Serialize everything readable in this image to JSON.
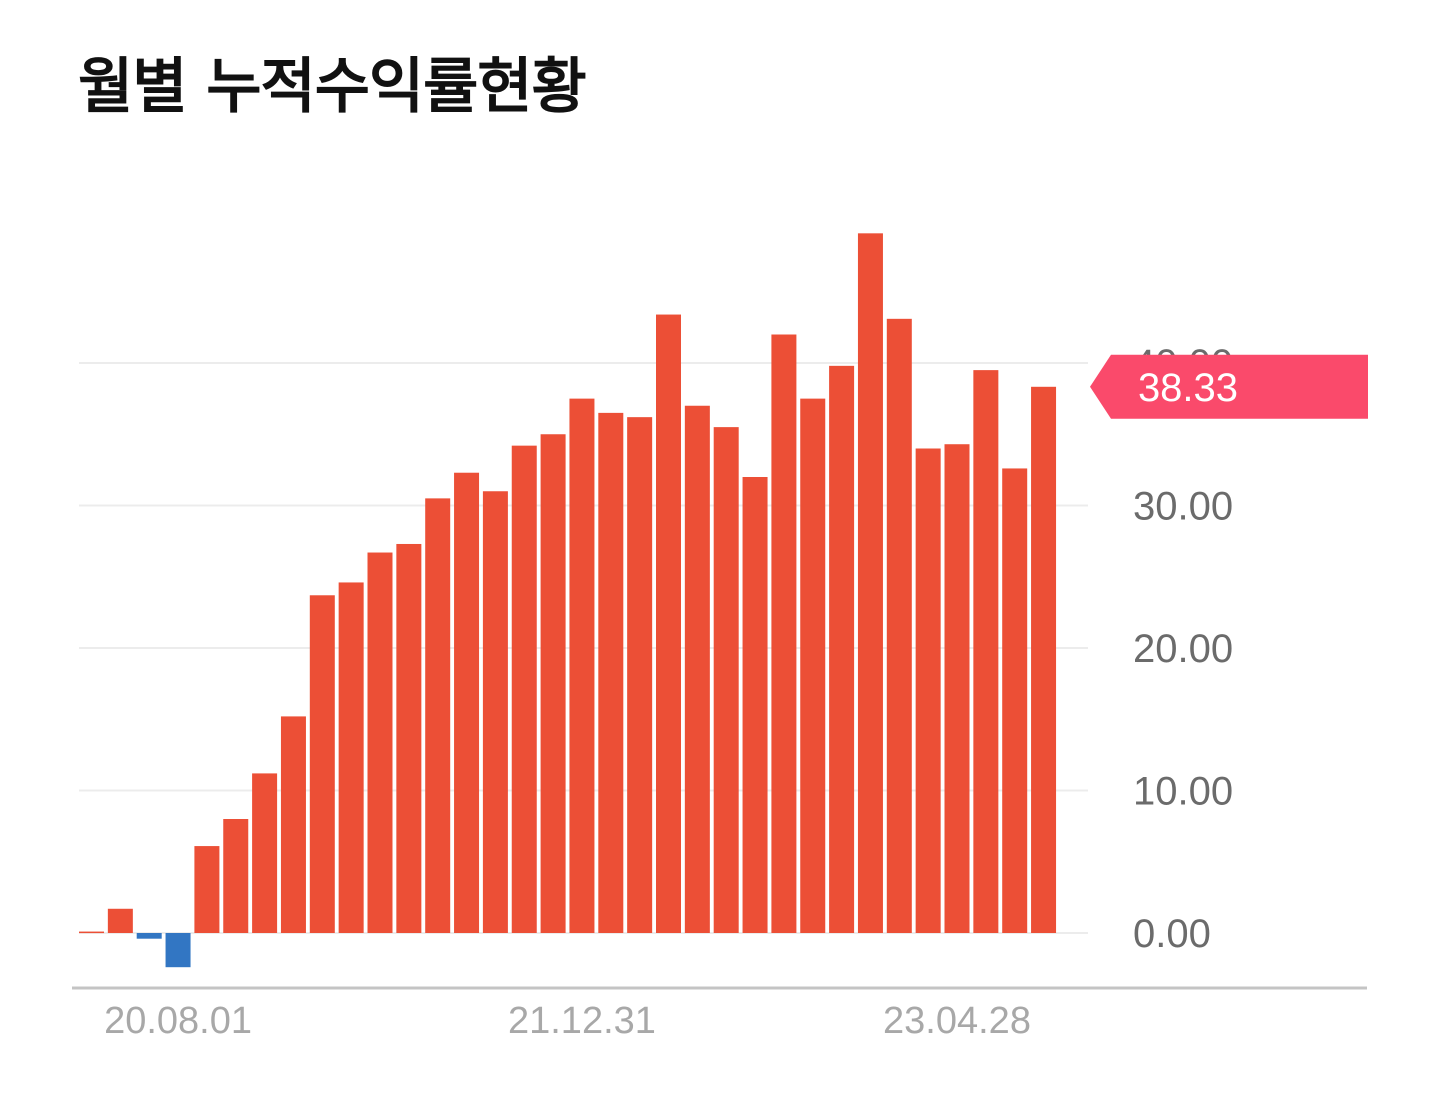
{
  "title": "월별 누적수익률현황",
  "chart_data": {
    "type": "bar",
    "ylim": [
      -2.5,
      50
    ],
    "y_ticks": [
      0,
      10,
      20,
      30,
      40
    ],
    "y_tick_labels": [
      "0.00",
      "10.00",
      "20.00",
      "30.00",
      "40.00"
    ],
    "x_tick_labels": [
      {
        "index": 3,
        "label": "20.08.01"
      },
      {
        "index": 17,
        "label": "21.12.31"
      },
      {
        "index": 30,
        "label": "23.04.28"
      }
    ],
    "values": [
      0.1,
      1.7,
      -0.4,
      -2.4,
      6.1,
      8.0,
      11.2,
      15.2,
      23.7,
      24.6,
      26.7,
      27.3,
      30.5,
      32.3,
      31.0,
      34.2,
      35.0,
      37.5,
      36.5,
      36.2,
      43.4,
      37.0,
      35.5,
      32.0,
      42.0,
      37.5,
      39.8,
      49.1,
      43.1,
      34.0,
      34.3,
      39.5,
      32.6,
      38.33
    ],
    "positive_color": "#ec4f36",
    "negative_color": "#3276c3",
    "grid": true,
    "current_value_label": "38.33",
    "current_value_color": "#fa4a6b"
  }
}
